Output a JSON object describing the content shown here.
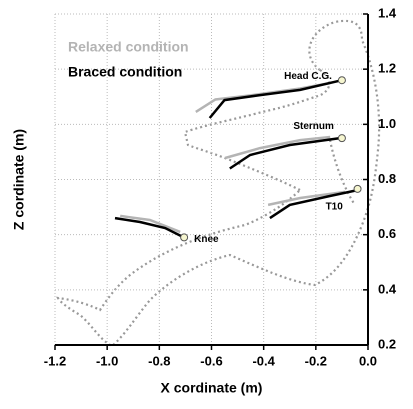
{
  "chart_data": {
    "type": "line",
    "xlabel": "X cordinate (m)",
    "ylabel": "Z cordinate (m)",
    "xlim": [
      -1.2,
      0.0
    ],
    "ylim": [
      0.2,
      1.4
    ],
    "xticks": [
      -1.2,
      {
        "value": -1,
        "label": "-1.0"
      },
      -0.8,
      -0.6,
      -0.4,
      -0.2,
      {
        "value": 0,
        "label": "0.0"
      }
    ],
    "yticks": [
      0.2,
      0.4,
      0.6,
      0.8,
      {
        "value": 1,
        "label": "1.0"
      },
      1.2,
      1.4
    ],
    "grid": true,
    "legend": "upper left",
    "series": [
      {
        "name": "Relaxed condition",
        "color": "#b4b4b4",
        "x": [
          -0.66,
          -0.585,
          -0.45,
          -0.26,
          -0.145,
          null,
          -0.548,
          -0.414,
          -0.26,
          -0.145,
          null,
          -0.383,
          -0.26,
          -0.088,
          null,
          -0.95,
          -0.836,
          -0.72
        ],
        "y": [
          1.045,
          1.09,
          1.105,
          1.13,
          1.15,
          null,
          0.878,
          0.914,
          0.943,
          0.954,
          null,
          0.708,
          0.733,
          0.755,
          null,
          0.668,
          0.653,
          0.61
        ]
      },
      {
        "name": "Braced condition",
        "color": "#000000",
        "x": [
          -0.607,
          -0.55,
          -0.414,
          -0.26,
          -0.1,
          null,
          -0.53,
          -0.452,
          -0.3,
          -0.107,
          null,
          -0.376,
          -0.3,
          -0.146,
          -0.038,
          null,
          -0.97,
          -0.874,
          -0.778,
          -0.71
        ],
        "y": [
          1.023,
          1.088,
          1.106,
          1.125,
          1.16,
          null,
          0.84,
          0.889,
          0.925,
          0.95,
          null,
          0.66,
          0.708,
          0.74,
          0.762,
          null,
          0.66,
          0.646,
          0.624,
          0.592
        ]
      }
    ],
    "annotations": [
      {
        "text": "Head C.G.",
        "x": -0.1,
        "y": 1.16
      },
      {
        "text": "Sternum",
        "x": -0.1,
        "y": 0.95
      },
      {
        "text": "T10",
        "x": -0.04,
        "y": 0.766
      },
      {
        "text": "Knee",
        "x": -0.705,
        "y": 0.59
      }
    ]
  }
}
